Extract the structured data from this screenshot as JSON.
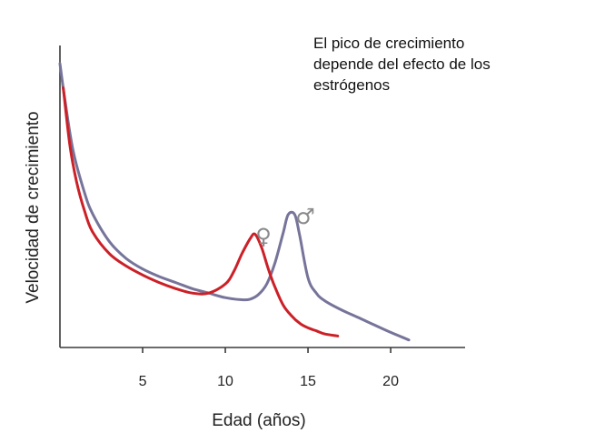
{
  "chart_data": {
    "type": "line",
    "xlabel": "Edad (años)",
    "ylabel": "Velocidad de crecimiento",
    "annotation": "El pico de crecimiento depende del efecto de los estrógenos",
    "xlim": [
      0,
      24.5
    ],
    "ylim": [
      0,
      100
    ],
    "x_ticks": [
      5,
      10,
      15,
      20
    ],
    "grid": false,
    "series": [
      {
        "name": "♀",
        "color": "#cc2027",
        "x": [
          0.2,
          0.6,
          1,
          1.5,
          2,
          3,
          4,
          5,
          6,
          7,
          8,
          9,
          10,
          10.5,
          11,
          11.5,
          11.8,
          12.2,
          12.6,
          13,
          13.5,
          14,
          14.5,
          15,
          15.5,
          16,
          16.8
        ],
        "y": [
          86,
          67,
          55,
          45,
          38,
          31,
          27,
          24,
          21.5,
          19.5,
          18,
          18,
          21,
          25,
          31,
          36,
          37.5,
          33,
          26,
          20,
          14,
          10.5,
          8,
          6.5,
          5.5,
          4.5,
          3.8
        ]
      },
      {
        "name": "♂",
        "color": "#76749a",
        "x": [
          0,
          0.3,
          0.8,
          1.5,
          2,
          3,
          4,
          5,
          6,
          7,
          8,
          9,
          10,
          11,
          11.5,
          12,
          12.5,
          13,
          13.5,
          13.8,
          14.2,
          14.5,
          15,
          15.5,
          16,
          17,
          18,
          19,
          20,
          21.1
        ],
        "y": [
          94,
          82,
          65,
          51,
          44,
          35,
          29.5,
          26,
          23.5,
          21.5,
          19.5,
          18,
          16.5,
          15.8,
          16,
          17.5,
          21,
          28,
          38,
          44,
          44,
          37,
          23,
          18,
          15.5,
          12.5,
          10,
          7.5,
          5,
          2.5
        ]
      }
    ]
  }
}
